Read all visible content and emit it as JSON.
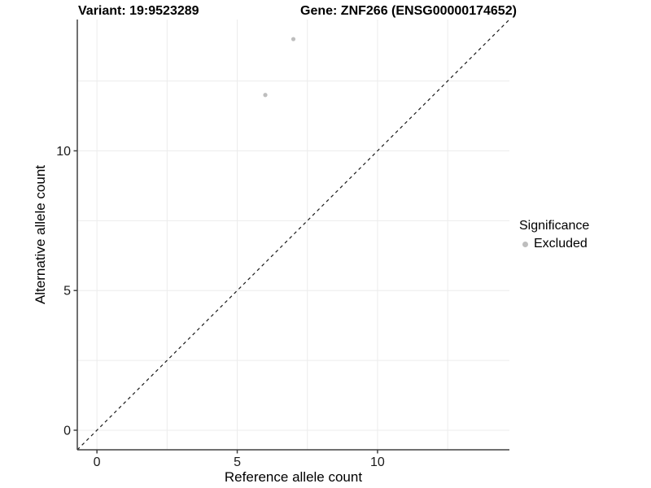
{
  "titles": {
    "variant": "Variant: 19:9523289",
    "gene": "Gene: ZNF266 (ENSG00000174652)"
  },
  "legend": {
    "title": "Significance",
    "items": [
      {
        "label": "Excluded",
        "color": "#bebebe"
      }
    ]
  },
  "colors": {
    "point": "#bebebe",
    "grid": "#ececec",
    "axis_line": "#404040",
    "tick_text": "#1a1a1a",
    "identity_line": "#1a1a1a",
    "background": "#ffffff"
  },
  "chart_data": {
    "type": "scatter",
    "title": "Variant: 19:9523289   Gene: ZNF266 (ENSG00000174652)",
    "xlabel": "Reference allele count",
    "ylabel": "Alternative allele count",
    "xlim": [
      -0.7,
      14.7
    ],
    "ylim": [
      -0.7,
      14.7
    ],
    "x_ticks": [
      0,
      5,
      10
    ],
    "y_ticks": [
      0,
      5,
      10
    ],
    "x_minor_gridlines": [
      2.5,
      7.5,
      12.5
    ],
    "y_minor_gridlines": [
      2.5,
      7.5,
      12.5
    ],
    "grid": true,
    "legend_position": "right",
    "reference_line": {
      "type": "identity",
      "slope": 1,
      "intercept": 0,
      "style": "dashed"
    },
    "series": [
      {
        "name": "Excluded",
        "color": "#bebebe",
        "points": [
          {
            "x": 6,
            "y": 12
          },
          {
            "x": 7,
            "y": 14
          }
        ]
      }
    ]
  }
}
